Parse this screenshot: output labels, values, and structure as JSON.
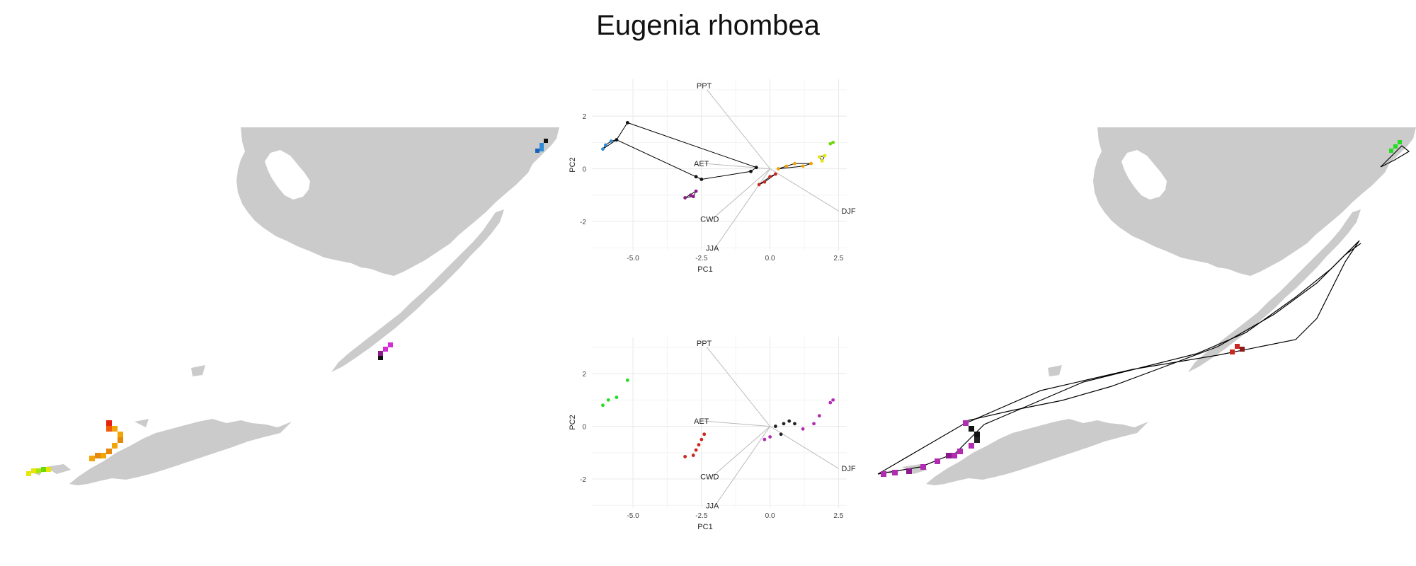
{
  "title": "Eugenia rhombea",
  "colors": {
    "land": "#cbcbcb",
    "grid": "#e8e8e8",
    "loading": "#bbbbbb",
    "hull": "#000000"
  },
  "chart_data": [
    {
      "type": "scatter",
      "panel": "pca-top",
      "xlabel": "PC1",
      "ylabel": "PC2",
      "xlim": [
        -6.5,
        2.8
      ],
      "ylim": [
        -3.1,
        3.4
      ],
      "xticks": [
        -5.0,
        -2.5,
        0.0,
        2.5
      ],
      "xtick_labels": [
        "-5.0",
        "-2.5",
        "0.0",
        "2.5"
      ],
      "yticks": [
        2,
        0,
        -2
      ],
      "ytick_labels": [
        "2",
        "0",
        "-2"
      ],
      "grid": true,
      "loadings": [
        {
          "name": "PPT",
          "x": -2.3,
          "y": 3.0
        },
        {
          "name": "AET",
          "x": -2.4,
          "y": 0.2
        },
        {
          "name": "DJF",
          "x": 2.5,
          "y": -1.6
        },
        {
          "name": "CWD",
          "x": -2.1,
          "y": -1.9
        },
        {
          "name": "JJA",
          "x": -2.0,
          "y": -3.0
        }
      ],
      "series": [
        {
          "color": "#2e8bd8",
          "points": [
            [
              -6.1,
              0.75
            ],
            [
              -6.0,
              0.9
            ],
            [
              -5.8,
              1.05
            ],
            [
              -5.6,
              1.1
            ]
          ]
        },
        {
          "color": "#111111",
          "points": [
            [
              -5.2,
              1.75
            ],
            [
              -5.6,
              1.1
            ],
            [
              -2.7,
              -0.3
            ],
            [
              -2.5,
              -0.4
            ],
            [
              -0.7,
              -0.1
            ],
            [
              -0.5,
              0.05
            ]
          ]
        },
        {
          "color": "#8b1a8b",
          "points": [
            [
              -3.1,
              -1.1
            ],
            [
              -2.9,
              -1.0
            ],
            [
              -2.7,
              -0.85
            ],
            [
              -2.8,
              -1.05
            ]
          ]
        },
        {
          "color": "#c8281e",
          "points": [
            [
              -0.4,
              -0.6
            ],
            [
              -0.2,
              -0.5
            ],
            [
              0.0,
              -0.3
            ],
            [
              0.2,
              -0.2
            ]
          ]
        },
        {
          "color": "#f2a50a",
          "points": [
            [
              0.3,
              0.0
            ],
            [
              0.6,
              0.1
            ],
            [
              0.9,
              0.2
            ],
            [
              1.2,
              0.1
            ],
            [
              1.5,
              0.2
            ]
          ]
        },
        {
          "color": "#e6e60a",
          "points": [
            [
              1.8,
              0.45
            ],
            [
              1.9,
              0.3
            ],
            [
              2.0,
              0.5
            ]
          ]
        },
        {
          "color": "#6fd80c",
          "points": [
            [
              2.3,
              1.0
            ],
            [
              2.2,
              0.95
            ]
          ]
        }
      ]
    },
    {
      "type": "scatter",
      "panel": "pca-bottom",
      "xlabel": "PC1",
      "ylabel": "PC2",
      "xlim": [
        -6.5,
        2.8
      ],
      "ylim": [
        -3.1,
        3.4
      ],
      "xticks": [
        -5.0,
        -2.5,
        0.0,
        2.5
      ],
      "xtick_labels": [
        "-5.0",
        "-2.5",
        "0.0",
        "2.5"
      ],
      "yticks": [
        2,
        0,
        -2
      ],
      "ytick_labels": [
        "2",
        "0",
        "-2"
      ],
      "grid": true,
      "loadings": [
        {
          "name": "PPT",
          "x": -2.3,
          "y": 3.0
        },
        {
          "name": "AET",
          "x": -2.4,
          "y": 0.2
        },
        {
          "name": "DJF",
          "x": 2.5,
          "y": -1.6
        },
        {
          "name": "CWD",
          "x": -2.1,
          "y": -1.9
        },
        {
          "name": "JJA",
          "x": -2.0,
          "y": -3.0
        }
      ],
      "series": [
        {
          "color": "#22dd22",
          "points": [
            [
              -6.1,
              0.8
            ],
            [
              -5.9,
              1.0
            ],
            [
              -5.6,
              1.1
            ],
            [
              -5.2,
              1.75
            ]
          ]
        },
        {
          "color": "#c8281e",
          "points": [
            [
              -3.1,
              -1.15
            ],
            [
              -2.8,
              -1.1
            ],
            [
              -2.7,
              -0.9
            ],
            [
              -2.6,
              -0.7
            ],
            [
              -2.5,
              -0.5
            ],
            [
              -2.4,
              -0.3
            ]
          ]
        },
        {
          "color": "#222222",
          "points": [
            [
              0.2,
              0.0
            ],
            [
              0.5,
              0.1
            ],
            [
              0.7,
              0.2
            ],
            [
              0.9,
              0.1
            ],
            [
              0.4,
              -0.3
            ]
          ]
        },
        {
          "color": "#b12cb1",
          "points": [
            [
              -0.2,
              -0.5
            ],
            [
              0.0,
              -0.4
            ],
            [
              1.2,
              -0.1
            ],
            [
              1.6,
              0.1
            ],
            [
              1.8,
              0.4
            ],
            [
              2.2,
              0.9
            ],
            [
              2.3,
              1.0
            ]
          ]
        }
      ]
    }
  ]
}
